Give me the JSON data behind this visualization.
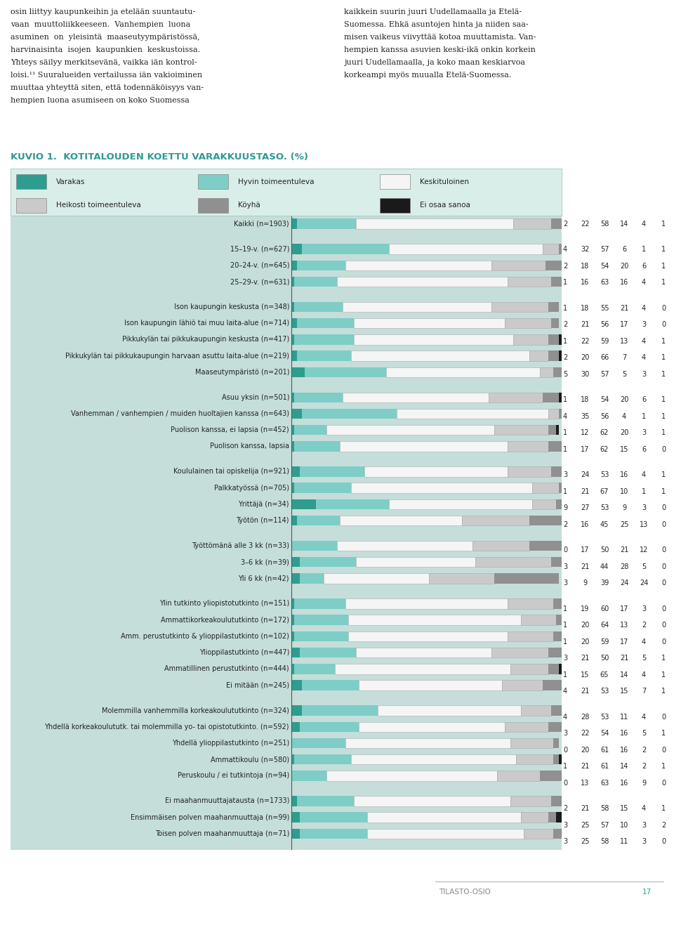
{
  "title": "KUVIO 1.  KOTITALOUDEN KOETTU VARAKKUUSTASO. (%)",
  "title_color": "#2e9a90",
  "page_bg": "#ffffff",
  "chart_bg": "#c5deda",
  "legend_bg": "#daeee9",
  "legend_border": "#aaccc8",
  "categories": [
    "Kaikki (n=1903)",
    "15–19-v. (n=627)",
    "20–24-v. (n=645)",
    "25–29-v. (n=631)",
    "Ison kaupungin keskusta (n=348)",
    "Ison kaupungin lähiö tai muu laita-alue (n=714)",
    "Pikkukylän tai pikkukaupungin keskusta (n=417)",
    "Pikkukylän tai pikkukaupungin harvaan asuttu laita-alue (n=219)",
    "Maaseutympäristö (n=201)",
    "Asuu yksin (n=501)",
    "Vanhemman / vanhempien / muiden huoltajien kanssa (n=643)",
    "Puolison kanssa, ei lapsia (n=452)",
    "Puolison kanssa, lapsia",
    "Koululainen tai opiskelija (n=921)",
    "Palkkatyössä (n=705)",
    "Yrittäjä (n=34)",
    "Työtön (n=114)",
    "Työttömänä alle 3 kk (n=33)",
    "3–6 kk (n=39)",
    "Yli 6 kk (n=42)",
    "Ylin tutkinto yliopistotutkinto (n=151)",
    "Ammattikorkeakoulututkinto (n=172)",
    "Amm. perustutkinto & ylioppilastutkinto (n=102)",
    "Ylioppilastutkinto (n=447)",
    "Ammatillinen perustutkinto (n=444)",
    "Ei mitään (n=245)",
    "Molemmilla vanhemmilla korkeakoulututkinto (n=324)",
    "Yhdellä korkeakoulututk. tai molemmilla yo- tai opistotutkinto. (n=592)",
    "Yhdellä ylioppilastutkinto (n=251)",
    "Ammattikoulu (n=580)",
    "Peruskoulu / ei tutkintoja (n=94)",
    "Ei maahanmuuttajatausta (n=1733)",
    "Ensimmäisen polven maahanmuuttaja (n=99)",
    "Toisen polven maahanmuuttaja (n=71)"
  ],
  "group_breaks_before": [
    1,
    4,
    9,
    13,
    17,
    20,
    26,
    31
  ],
  "data": [
    [
      2,
      22,
      58,
      14,
      4,
      1
    ],
    [
      4,
      32,
      57,
      6,
      1,
      1
    ],
    [
      2,
      18,
      54,
      20,
      6,
      1
    ],
    [
      1,
      16,
      63,
      16,
      4,
      1
    ],
    [
      1,
      18,
      55,
      21,
      4,
      0
    ],
    [
      2,
      21,
      56,
      17,
      3,
      0
    ],
    [
      1,
      22,
      59,
      13,
      4,
      1
    ],
    [
      2,
      20,
      66,
      7,
      4,
      1
    ],
    [
      5,
      30,
      57,
      5,
      3,
      1
    ],
    [
      1,
      18,
      54,
      20,
      6,
      1
    ],
    [
      4,
      35,
      56,
      4,
      1,
      1
    ],
    [
      1,
      12,
      62,
      20,
      3,
      1
    ],
    [
      1,
      17,
      62,
      15,
      6,
      0
    ],
    [
      3,
      24,
      53,
      16,
      4,
      1
    ],
    [
      1,
      21,
      67,
      10,
      1,
      1
    ],
    [
      9,
      27,
      53,
      9,
      3,
      0
    ],
    [
      2,
      16,
      45,
      25,
      13,
      0
    ],
    [
      0,
      17,
      50,
      21,
      12,
      0
    ],
    [
      3,
      21,
      44,
      28,
      5,
      0
    ],
    [
      3,
      9,
      39,
      24,
      24,
      0
    ],
    [
      1,
      19,
      60,
      17,
      3,
      0
    ],
    [
      1,
      20,
      64,
      13,
      2,
      0
    ],
    [
      1,
      20,
      59,
      17,
      4,
      0
    ],
    [
      3,
      21,
      50,
      21,
      5,
      1
    ],
    [
      1,
      15,
      65,
      14,
      4,
      1
    ],
    [
      4,
      21,
      53,
      15,
      7,
      1
    ],
    [
      4,
      28,
      53,
      11,
      4,
      0
    ],
    [
      3,
      22,
      54,
      16,
      5,
      1
    ],
    [
      0,
      20,
      61,
      16,
      2,
      0
    ],
    [
      1,
      21,
      61,
      14,
      2,
      1
    ],
    [
      0,
      13,
      63,
      16,
      9,
      0
    ],
    [
      2,
      21,
      58,
      15,
      4,
      1
    ],
    [
      3,
      25,
      57,
      10,
      3,
      2
    ],
    [
      3,
      25,
      58,
      11,
      3,
      0
    ]
  ],
  "colors": [
    "#2e9d8f",
    "#7ecdc6",
    "#f5f5f5",
    "#cacaca",
    "#909090",
    "#1a1a1a"
  ],
  "legend_labels": [
    "Varakas",
    "Hyvin toimeentuleva",
    "Keskituloinen",
    "Heikosti toimeentuleva",
    "Köyhä",
    "Ei osaa sanoa"
  ],
  "top_text_lines": [
    "osin liittyy kaupunkeihin ja etelään suuntautu-",
    "vaan  muuttoliikkeeseen.  Vanhempien  luona",
    "asuminen  on  yleisintä  maaseutympäristössä,",
    "harvinaisinta  isojen  kaupunkien  keskustoissa.",
    "Yhteys säilyy merkitsevänä, vaikka iän kontrol-",
    "loisi.¹¹ Suuralueiden vertailussa iän vakioiminen",
    "muuttaa yhteyyttä siten, että todennäköisyys van-",
    "hempien luona asumiseen on koko Suomessa"
  ]
}
